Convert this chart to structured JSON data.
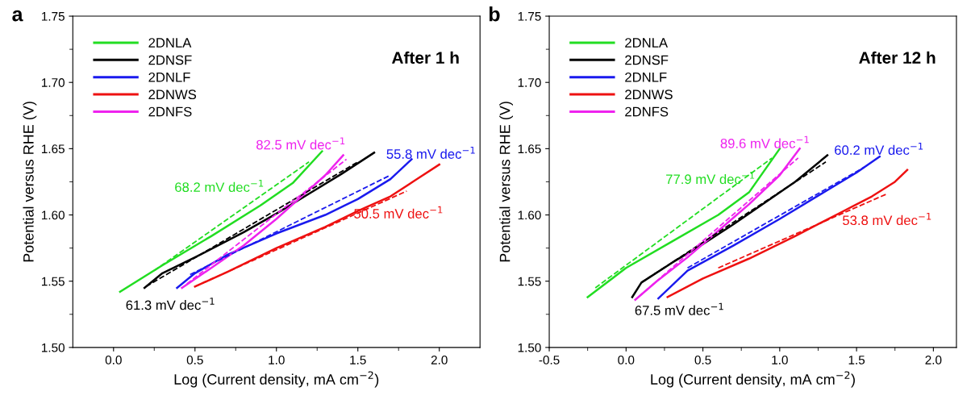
{
  "chart_data": [
    {
      "type": "line",
      "title": "a",
      "xlabel": "Log (Current density, mA cm$^{−2}$)",
      "ylabel": "Potential versus RHE (V)",
      "legend": "top left",
      "xlim": [
        -0.25,
        2.25
      ],
      "ylim": [
        1.5,
        1.75
      ],
      "xticks": [
        {
          "value": 0.0,
          "label": "0.0"
        },
        {
          "value": 0.25,
          "label": null
        },
        {
          "value": 0.5,
          "label": "0.5"
        },
        {
          "value": 0.75,
          "label": null
        },
        {
          "value": 1.0,
          "label": "1.0"
        },
        {
          "value": 1.25,
          "label": null
        },
        {
          "value": 1.5,
          "label": "1.5"
        },
        {
          "value": 1.75,
          "label": null
        },
        {
          "value": 2.0,
          "label": "2.0"
        }
      ],
      "yticks": [
        {
          "value": 1.5,
          "label": "1.50"
        },
        {
          "value": 1.525,
          "label": null
        },
        {
          "value": 1.55,
          "label": "1.55"
        },
        {
          "value": 1.575,
          "label": null
        },
        {
          "value": 1.6,
          "label": "1.60"
        },
        {
          "value": 1.625,
          "label": null
        },
        {
          "value": 1.65,
          "label": "1.65"
        },
        {
          "value": 1.675,
          "label": null
        },
        {
          "value": 1.7,
          "label": "1.70"
        },
        {
          "value": 1.725,
          "label": null
        },
        {
          "value": 1.75,
          "label": "1.75"
        }
      ],
      "series": [
        {
          "name": "2DNLA",
          "color": "#22dd22",
          "x": [
            0.04,
            0.3,
            0.6,
            0.9,
            1.1,
            1.28
          ],
          "values": [
            1.542,
            1.562,
            1.584,
            1.607,
            1.624,
            1.648
          ]
        },
        {
          "name": "2DNSF",
          "color": "#000000",
          "x": [
            0.19,
            0.3,
            0.5,
            0.8,
            1.0,
            1.2,
            1.4,
            1.6
          ],
          "values": [
            1.545,
            1.556,
            1.568,
            1.587,
            1.601,
            1.616,
            1.631,
            1.647
          ]
        },
        {
          "name": "2DNLF",
          "color": "#1a1aee",
          "x": [
            0.39,
            0.5,
            0.7,
            1.0,
            1.3,
            1.5,
            1.7,
            1.83
          ],
          "values": [
            1.545,
            1.556,
            1.57,
            1.586,
            1.6,
            1.612,
            1.627,
            1.642
          ]
        },
        {
          "name": "2DNWS",
          "color": "#ee1111",
          "x": [
            0.5,
            0.7,
            1.0,
            1.3,
            1.5,
            1.7,
            1.85,
            2.0
          ],
          "values": [
            1.546,
            1.557,
            1.575,
            1.591,
            1.603,
            1.614,
            1.626,
            1.638
          ]
        },
        {
          "name": "2DNFS",
          "color": "#ee22ee",
          "x": [
            0.42,
            0.6,
            0.8,
            1.0,
            1.2,
            1.3,
            1.41
          ],
          "values": [
            1.545,
            1.56,
            1.577,
            1.597,
            1.619,
            1.63,
            1.645
          ]
        },
        {
          "color": "#22dd22",
          "line_style": "dashed",
          "x": [
            0.25,
            1.2
          ],
          "values": [
            1.558,
            1.64
          ]
        },
        {
          "color": "#000000",
          "line_style": "dashed",
          "x": [
            0.2,
            1.5
          ],
          "values": [
            1.546,
            1.64
          ]
        },
        {
          "color": "#1a1aee",
          "line_style": "dashed",
          "x": [
            0.47,
            1.7
          ],
          "values": [
            1.555,
            1.63
          ]
        },
        {
          "color": "#ee1111",
          "line_style": "dashed",
          "x": [
            0.5,
            1.8
          ],
          "values": [
            1.546,
            1.618
          ]
        },
        {
          "color": "#ee22ee",
          "line_style": "dashed",
          "x": [
            0.45,
            1.43
          ],
          "values": [
            1.548,
            1.642
          ]
        }
      ],
      "annotations": [
        "After 1 h",
        "68.2 mV dec$^{−1}$",
        "61.3 mV dec$^{−1}$",
        "55.8 mV dec$^{−1}$",
        "50.5 mV dec$^{−1}$",
        "82.5 mV dec$^{−1}$"
      ]
    },
    {
      "type": "line",
      "title": "b",
      "xlabel": "Log (Current density, mA cm$^{−2}$)",
      "ylabel": "Potential versus RHE (V)",
      "legend": "top left",
      "xlim": [
        -0.5,
        2.15
      ],
      "ylim": [
        1.5,
        1.75
      ],
      "xticks": [
        {
          "value": -0.5,
          "label": "-0.5"
        },
        {
          "value": -0.25,
          "label": null
        },
        {
          "value": 0.0,
          "label": "0.0"
        },
        {
          "value": 0.25,
          "label": null
        },
        {
          "value": 0.5,
          "label": "0.5"
        },
        {
          "value": 0.75,
          "label": null
        },
        {
          "value": 1.0,
          "label": "1.0"
        },
        {
          "value": 1.25,
          "label": null
        },
        {
          "value": 1.5,
          "label": "1.5"
        },
        {
          "value": 1.75,
          "label": null
        },
        {
          "value": 2.0,
          "label": "2.0"
        }
      ],
      "yticks": [
        {
          "value": 1.5,
          "label": "1.50"
        },
        {
          "value": 1.525,
          "label": null
        },
        {
          "value": 1.55,
          "label": "1.55"
        },
        {
          "value": 1.575,
          "label": null
        },
        {
          "value": 1.6,
          "label": "1.60"
        },
        {
          "value": 1.625,
          "label": null
        },
        {
          "value": 1.65,
          "label": "1.65"
        },
        {
          "value": 1.675,
          "label": null
        },
        {
          "value": 1.7,
          "label": "1.70"
        },
        {
          "value": 1.725,
          "label": null
        },
        {
          "value": 1.75,
          "label": "1.75"
        }
      ],
      "series": [
        {
          "name": "2DNLA",
          "color": "#22dd22",
          "x": [
            -0.25,
            0.0,
            0.3,
            0.6,
            0.8,
            1.0
          ],
          "values": [
            1.538,
            1.56,
            1.58,
            1.6,
            1.617,
            1.65
          ]
        },
        {
          "name": "2DNSF",
          "color": "#000000",
          "x": [
            0.04,
            0.1,
            0.3,
            0.5,
            0.7,
            0.9,
            1.1,
            1.31
          ],
          "values": [
            1.538,
            1.549,
            1.564,
            1.578,
            1.593,
            1.609,
            1.625,
            1.645
          ]
        },
        {
          "name": "2DNLF",
          "color": "#1a1aee",
          "x": [
            0.21,
            0.4,
            0.7,
            1.0,
            1.3,
            1.5,
            1.65
          ],
          "values": [
            1.537,
            1.558,
            1.577,
            1.597,
            1.618,
            1.632,
            1.644
          ]
        },
        {
          "name": "2DNWS",
          "color": "#ee1111",
          "x": [
            0.27,
            0.5,
            0.8,
            1.1,
            1.4,
            1.6,
            1.75,
            1.83
          ],
          "values": [
            1.538,
            1.552,
            1.567,
            1.584,
            1.602,
            1.614,
            1.625,
            1.634
          ]
        },
        {
          "name": "2DNFS",
          "color": "#ee22ee",
          "x": [
            0.06,
            0.2,
            0.4,
            0.6,
            0.8,
            1.0,
            1.13
          ],
          "values": [
            1.536,
            1.55,
            1.568,
            1.588,
            1.608,
            1.63,
            1.65
          ]
        },
        {
          "color": "#22dd22",
          "line_style": "dashed",
          "x": [
            -0.2,
            0.95
          ],
          "values": [
            1.545,
            1.643
          ]
        },
        {
          "color": "#000000",
          "line_style": "dashed",
          "x": [
            0.1,
            1.3
          ],
          "values": [
            1.549,
            1.64
          ]
        },
        {
          "color": "#1a1aee",
          "line_style": "dashed",
          "x": [
            0.4,
            1.55
          ],
          "values": [
            1.56,
            1.636
          ]
        },
        {
          "color": "#ee1111",
          "line_style": "dashed",
          "x": [
            0.6,
            1.7
          ],
          "values": [
            1.56,
            1.616
          ]
        },
        {
          "color": "#ee22ee",
          "line_style": "dashed",
          "x": [
            0.08,
            1.12
          ],
          "values": [
            1.538,
            1.643
          ]
        }
      ],
      "annotations": [
        "After 12 h",
        "77.9 mV dec$^{−1}$",
        "67.5 mV dec$^{−1}$",
        "60.2 mV dec$^{−1}$",
        "53.8 mV dec$^{−1}$",
        "89.6 mV dec$^{−1}$"
      ]
    }
  ]
}
